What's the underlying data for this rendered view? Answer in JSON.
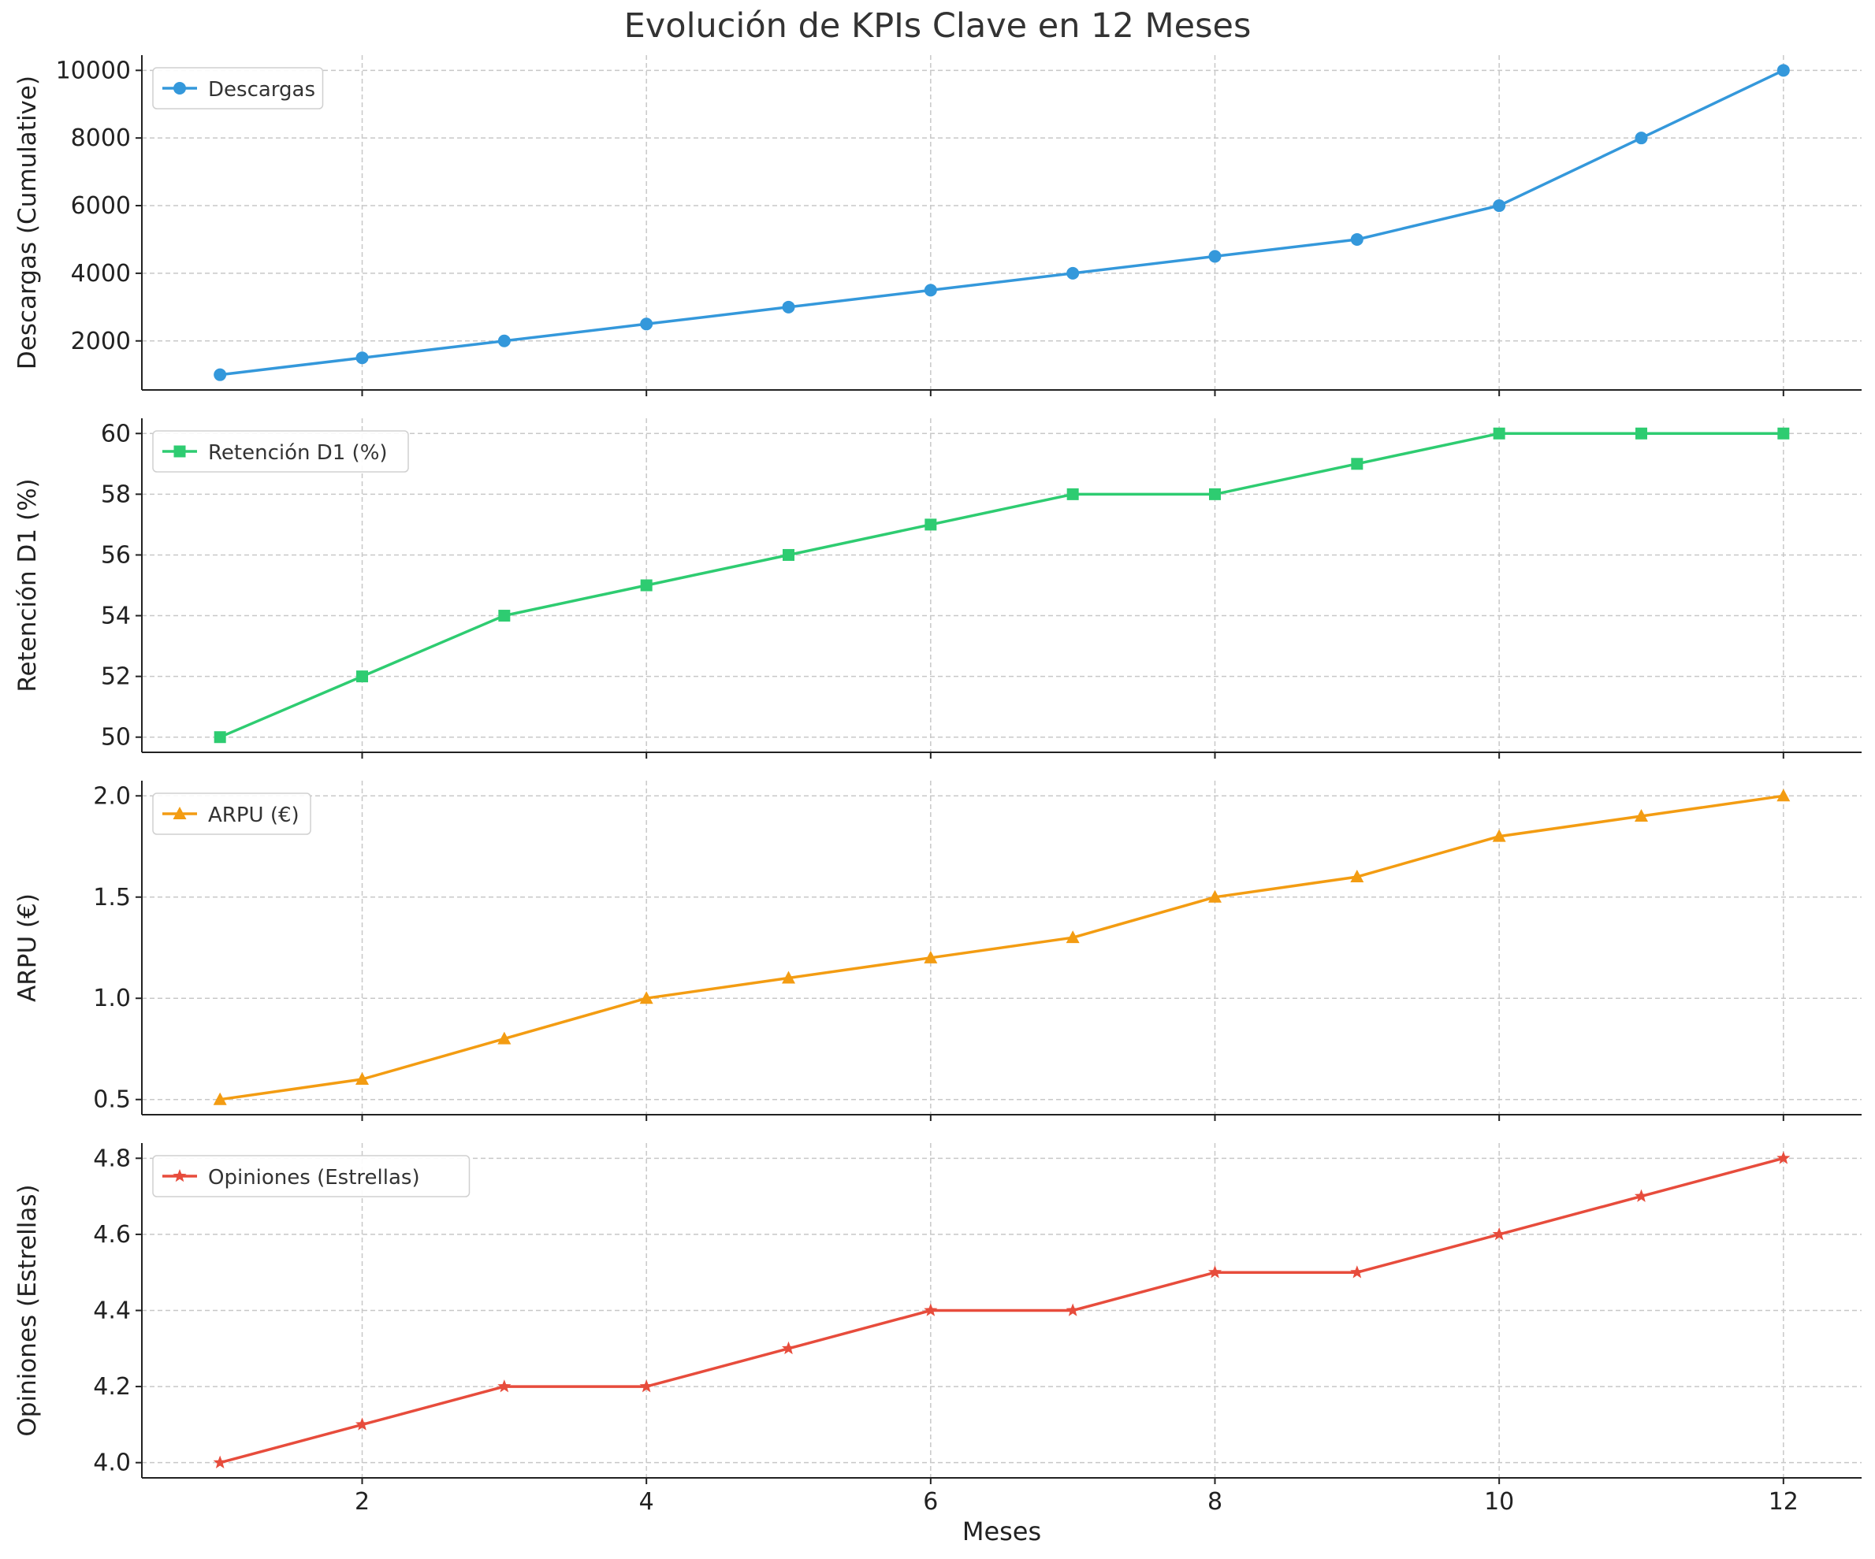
{
  "figure": {
    "title": "Evolución de KPIs Clave en 12 Meses",
    "xlabel": "Meses"
  },
  "chart_data": [
    {
      "type": "line",
      "title": "",
      "x": [
        1,
        2,
        3,
        4,
        5,
        6,
        7,
        8,
        9,
        10,
        11,
        12
      ],
      "series": [
        {
          "name": "Descargas",
          "values": [
            1000,
            1500,
            2000,
            2500,
            3000,
            3500,
            4000,
            4500,
            5000,
            6000,
            8000,
            10000
          ]
        }
      ],
      "ylabel": "Descargas (Cumulative)",
      "xlabel": "",
      "ylim": [
        550,
        10450
      ],
      "yticks": [
        2000,
        4000,
        6000,
        8000,
        10000
      ],
      "ytick_labels": [
        "2000",
        "4000",
        "6000",
        "8000",
        "10000"
      ],
      "color": "#3498db",
      "marker": "circle",
      "grid": true,
      "legend": "upper left"
    },
    {
      "type": "line",
      "title": "",
      "x": [
        1,
        2,
        3,
        4,
        5,
        6,
        7,
        8,
        9,
        10,
        11,
        12
      ],
      "series": [
        {
          "name": "Retención D1 (%)",
          "values": [
            50,
            52,
            54,
            55,
            56,
            57,
            58,
            58,
            59,
            60,
            60,
            60
          ]
        }
      ],
      "ylabel": "Retención D1 (%)",
      "xlabel": "",
      "ylim": [
        49.5,
        60.5
      ],
      "yticks": [
        50,
        52,
        54,
        56,
        58,
        60
      ],
      "ytick_labels": [
        "50",
        "52",
        "54",
        "56",
        "58",
        "60"
      ],
      "color": "#2ecc71",
      "marker": "square",
      "grid": true,
      "legend": "upper left"
    },
    {
      "type": "line",
      "title": "",
      "x": [
        1,
        2,
        3,
        4,
        5,
        6,
        7,
        8,
        9,
        10,
        11,
        12
      ],
      "series": [
        {
          "name": "ARPU (€)",
          "values": [
            0.5,
            0.6,
            0.8,
            1.0,
            1.1,
            1.2,
            1.3,
            1.5,
            1.6,
            1.8,
            1.9,
            2.0
          ]
        }
      ],
      "ylabel": "ARPU (€)",
      "xlabel": "",
      "ylim": [
        0.425,
        2.075
      ],
      "yticks": [
        0.5,
        1.0,
        1.5,
        2.0
      ],
      "ytick_labels": [
        "0.5",
        "1.0",
        "1.5",
        "2.0"
      ],
      "color": "#f39c12",
      "marker": "triangle",
      "grid": true,
      "legend": "upper left"
    },
    {
      "type": "line",
      "title": "",
      "x": [
        1,
        2,
        3,
        4,
        5,
        6,
        7,
        8,
        9,
        10,
        11,
        12
      ],
      "series": [
        {
          "name": "Opiniones (Estrellas)",
          "values": [
            4.0,
            4.1,
            4.2,
            4.2,
            4.3,
            4.4,
            4.4,
            4.5,
            4.5,
            4.6,
            4.7,
            4.8
          ]
        }
      ],
      "ylabel": "Opiniones (Estrellas)",
      "xlabel": "Meses",
      "ylim": [
        3.96,
        4.84
      ],
      "yticks": [
        4.0,
        4.2,
        4.4,
        4.6,
        4.8
      ],
      "ytick_labels": [
        "4.0",
        "4.2",
        "4.4",
        "4.6",
        "4.8"
      ],
      "color": "#e74c3c",
      "marker": "star",
      "grid": true,
      "legend": "upper left"
    }
  ],
  "xaxis": {
    "xlim": [
      0.45,
      12.55
    ],
    "ticks": [
      2,
      4,
      6,
      8,
      10,
      12
    ],
    "tick_labels": [
      "2",
      "4",
      "6",
      "8",
      "10",
      "12"
    ]
  }
}
